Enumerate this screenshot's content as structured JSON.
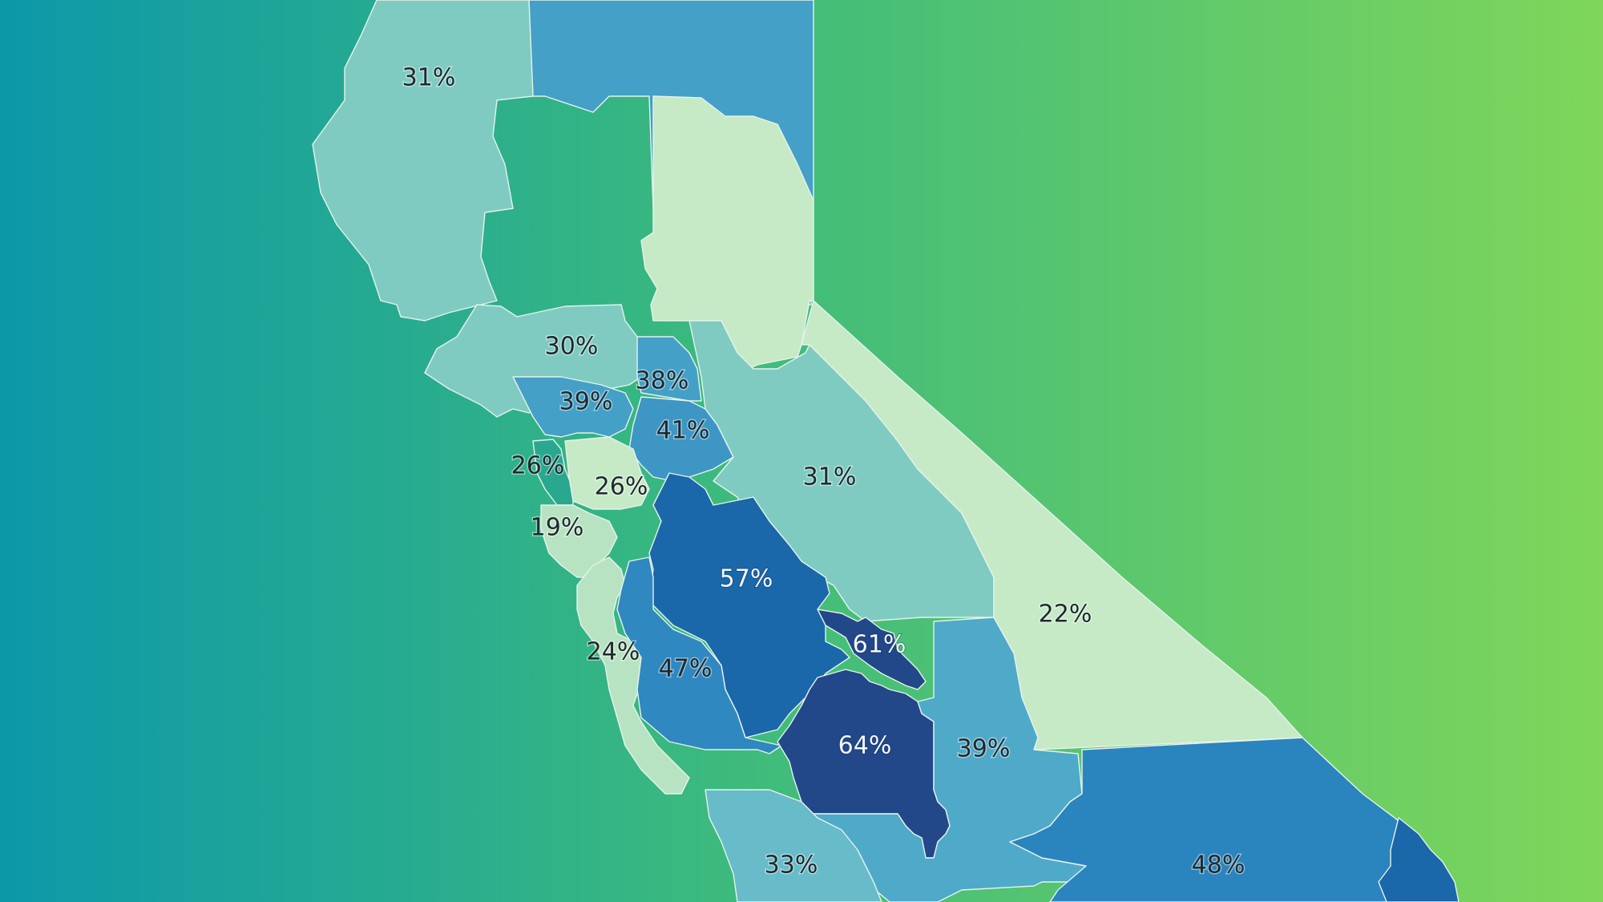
{
  "palette": {
    "background_left": "#0c98a9",
    "background_mid": "#3cba7d",
    "background_right": "#7fd65a",
    "scale": [
      "#c6e9c6",
      "#b2e0c4",
      "#7fcbc1",
      "#68bbc8",
      "#4fa9c9",
      "#3b93c2",
      "#2a84bd",
      "#1a67aa",
      "#22488a"
    ]
  },
  "regions": [
    {
      "id": "north-coast",
      "label": "31%",
      "value": 31,
      "color": "#7fcbc1"
    },
    {
      "id": "far-north",
      "label": "",
      "value": null,
      "color": "#44a0c6"
    },
    {
      "id": "northeast",
      "label": "",
      "value": null,
      "color": "#c6e9c6"
    },
    {
      "id": "north-bay-upper",
      "label": "30%",
      "value": 30,
      "color": "#7fcbc1"
    },
    {
      "id": "sacramento",
      "label": "38%",
      "value": 38,
      "color": "#44a0c6"
    },
    {
      "id": "north-bay",
      "label": "39%",
      "value": 39,
      "color": "#44a0c6"
    },
    {
      "id": "east-bay",
      "label": "41%",
      "value": 41,
      "color": "#3d96c4"
    },
    {
      "id": "san-francisco",
      "label": "26%",
      "value": 26,
      "color": "#2aa78f"
    },
    {
      "id": "oakland",
      "label": "26%",
      "value": 26,
      "color": "#c6e9c6"
    },
    {
      "id": "sierra",
      "label": "31%",
      "value": 31,
      "color": "#7fcbc1"
    },
    {
      "id": "peninsula",
      "label": "19%",
      "value": 19,
      "color": "#b8e3c2"
    },
    {
      "id": "eastern-sierra",
      "label": "22%",
      "value": 22,
      "color": "#c6e9c6"
    },
    {
      "id": "central-valley-north",
      "label": "57%",
      "value": 57,
      "color": "#1a67aa"
    },
    {
      "id": "central-valley-mid",
      "label": "61%",
      "value": 61,
      "color": "#22488a"
    },
    {
      "id": "santa-cruz",
      "label": "24%",
      "value": 24,
      "color": "#b8e3c2"
    },
    {
      "id": "monterey-inland",
      "label": "47%",
      "value": 47,
      "color": "#2f88c0"
    },
    {
      "id": "fresno",
      "label": "64%",
      "value": 64,
      "color": "#22488a"
    },
    {
      "id": "tulare",
      "label": "39%",
      "value": 39,
      "color": "#4fa9c9"
    },
    {
      "id": "san-bernardino",
      "label": "48%",
      "value": 48,
      "color": "#2a84bd"
    },
    {
      "id": "central-coast",
      "label": "33%",
      "value": 33,
      "color": "#68bbc8"
    }
  ]
}
